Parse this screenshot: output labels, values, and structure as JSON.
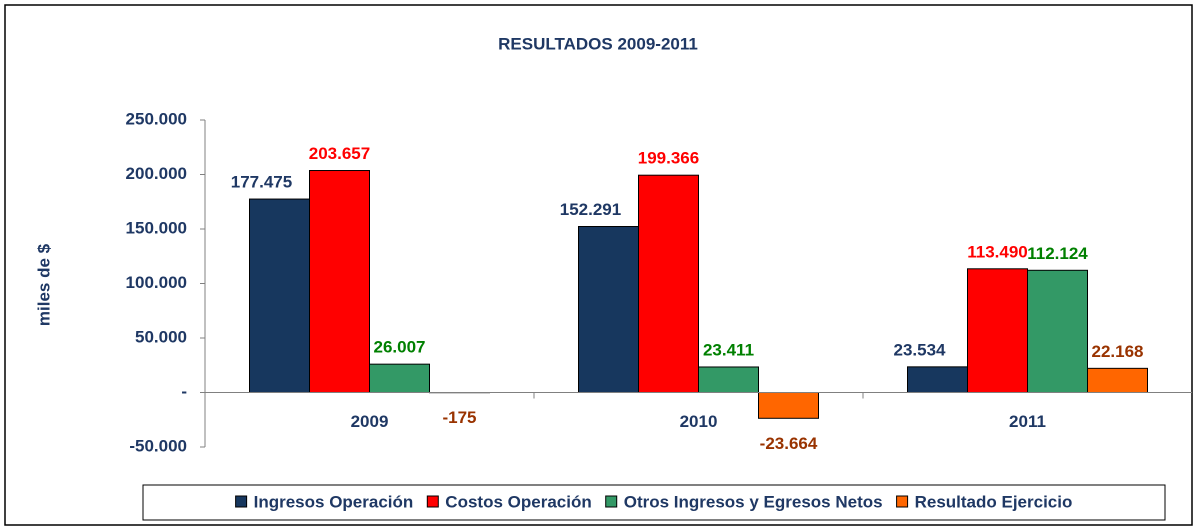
{
  "chart_data": {
    "type": "bar",
    "title": "RESULTADOS 2009-2011",
    "y_label": "miles de $",
    "categories": [
      "2009",
      "2010",
      "2011"
    ],
    "series": [
      {
        "name": "Ingresos Operación",
        "color": "#17375e",
        "label_color": "#1f3864",
        "values": [
          177475,
          152291,
          23534
        ],
        "value_labels": [
          "177.475",
          "152.291",
          "23.534"
        ]
      },
      {
        "name": "Costos Operación",
        "color": "#ff0000",
        "label_color": "#ff0000",
        "values": [
          203657,
          199366,
          113490
        ],
        "value_labels": [
          "203.657",
          "199.366",
          "113.490"
        ]
      },
      {
        "name": "Otros Ingresos y Egresos Netos",
        "color": "#339966",
        "label_color": "#008000",
        "values": [
          26007,
          23411,
          112124
        ],
        "value_labels": [
          "26.007",
          "23.411",
          "112.124"
        ]
      },
      {
        "name": "Resultado Ejercicio",
        "color": "#ff6600",
        "label_color": "#993300",
        "values": [
          -175,
          -23664,
          22168
        ],
        "value_labels": [
          "-175",
          "-23.664",
          "22.168"
        ]
      }
    ],
    "ylim": [
      -50000,
      250000
    ],
    "yticks": [
      {
        "value": -50000,
        "label": "-50.000"
      },
      {
        "value": 0,
        "label": "-"
      },
      {
        "value": 50000,
        "label": "50.000"
      },
      {
        "value": 100000,
        "label": "100.000"
      },
      {
        "value": 150000,
        "label": "150.000"
      },
      {
        "value": 200000,
        "label": "200.000"
      },
      {
        "value": 250000,
        "label": "250.000"
      }
    ],
    "grid": false,
    "legend": "bottom"
  }
}
